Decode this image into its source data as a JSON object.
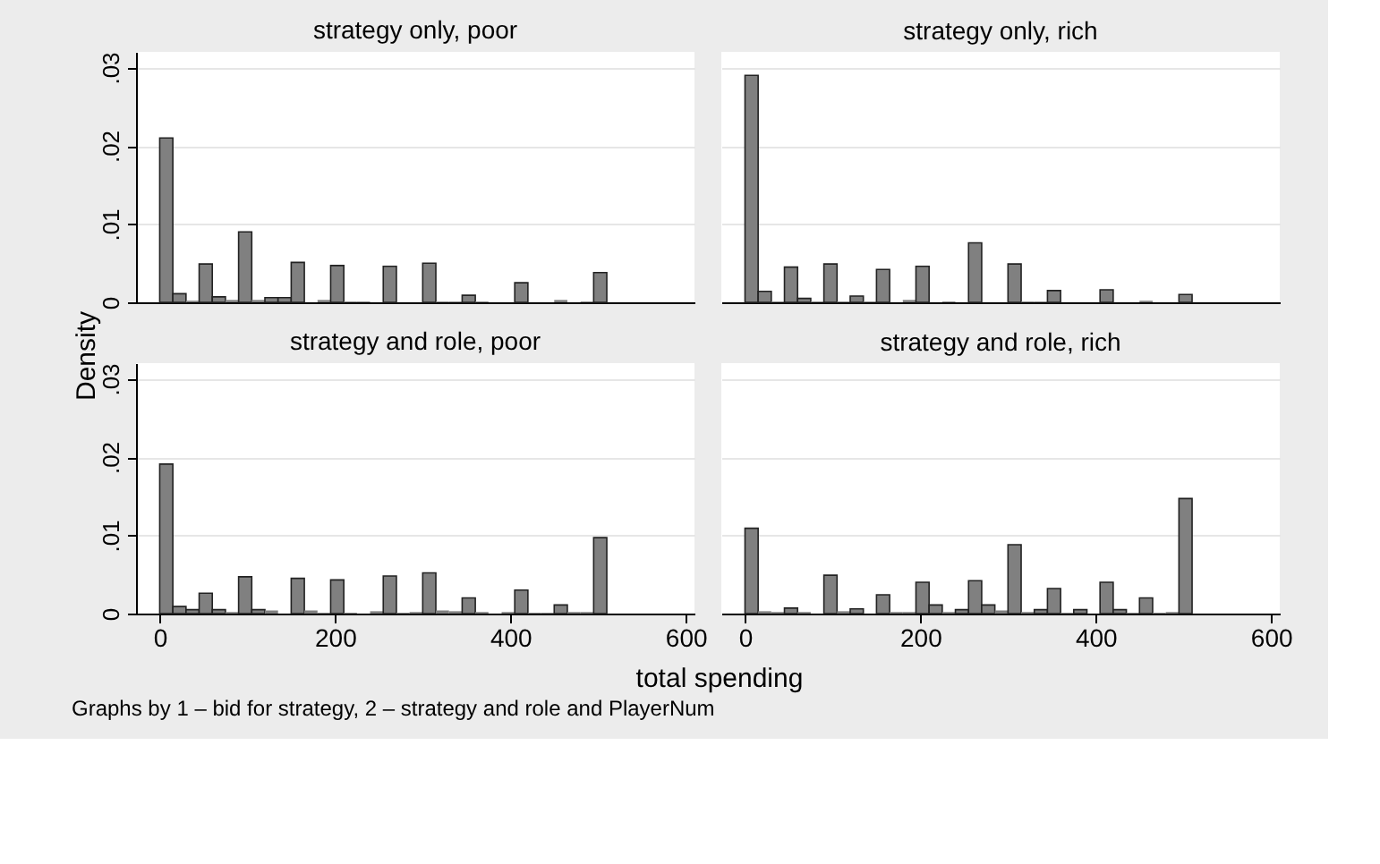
{
  "chart_data": [
    {
      "type": "histogram",
      "title": "strategy only, poor",
      "ylabel": "Density",
      "xlabel": "total spending",
      "annotations": [
        "Graphs by 1 – bid for strategy, 2 – strategy and role and PlayerNum"
      ],
      "color": "#808080",
      "grid": "y",
      "tick_labels": "y",
      "xlim": [
        -27,
        610
      ],
      "ylim": [
        0,
        0.032
      ],
      "xticks": [
        0,
        200,
        400,
        600
      ],
      "yticks": [
        {
          "value": 0,
          "label": "0"
        },
        {
          "value": 0.01,
          "label": ".01"
        },
        {
          "value": 0.02,
          "label": ".02"
        },
        {
          "value": 0.03,
          "label": ".03"
        }
      ],
      "bins": [
        0,
        15,
        30,
        45,
        60,
        75,
        90,
        105,
        120,
        135,
        150,
        165,
        180,
        195,
        210,
        225,
        240,
        255,
        270,
        285,
        300,
        315,
        330,
        345,
        360,
        375,
        390,
        405,
        420,
        435,
        450,
        465,
        480,
        495,
        510
      ],
      "values": [
        0.021,
        0.0011,
        0.0002,
        0.0049,
        0.0007,
        0.0003,
        0.009,
        0.0003,
        0.0006,
        0.0006,
        0.0051,
        0,
        0.0003,
        0.0047,
        0.0001,
        0.0001,
        0,
        0.0046,
        0,
        0,
        0.005,
        0.0001,
        0.0001,
        0.0009,
        0.0001,
        0,
        0,
        0.0025,
        0,
        0,
        0.0003,
        0,
        0.0001,
        0.0038
      ]
    },
    {
      "type": "histogram",
      "title": "strategy only, rich",
      "color": "#808080",
      "grid": "y",
      "tick_labels": false,
      "xlim": [
        -27,
        610
      ],
      "ylim": [
        0,
        0.032
      ],
      "xticks": [
        0,
        200,
        400,
        600
      ],
      "yticks": [
        0,
        0.01,
        0.02,
        0.03
      ],
      "bins": [
        0,
        15,
        30,
        45,
        60,
        75,
        90,
        105,
        120,
        135,
        150,
        165,
        180,
        195,
        210,
        225,
        240,
        255,
        270,
        285,
        300,
        315,
        330,
        345,
        360,
        375,
        390,
        405,
        420,
        435,
        450,
        465,
        480,
        495,
        510
      ],
      "values": [
        0.029,
        0.0014,
        0.0001,
        0.0045,
        0.0005,
        0.0001,
        0.0049,
        0.0001,
        0.0008,
        0.0001,
        0.0042,
        0,
        0.0003,
        0.0046,
        0,
        0.0001,
        0,
        0.0076,
        0,
        0,
        0.0049,
        0.0001,
        0.0001,
        0.0015,
        0,
        0,
        0,
        0.0016,
        0,
        0,
        0.0002,
        0,
        0,
        0.001
      ]
    },
    {
      "type": "histogram",
      "title": "strategy and role, poor",
      "color": "#808080",
      "grid": "y",
      "xlim": [
        -27,
        610
      ],
      "ylim": [
        0,
        0.032
      ],
      "xticks": [
        0,
        200,
        400,
        600
      ],
      "yticks": [
        {
          "value": 0,
          "label": "0"
        },
        {
          "value": 0.01,
          "label": ".01"
        },
        {
          "value": 0.02,
          "label": ".02"
        },
        {
          "value": 0.03,
          "label": ".03"
        }
      ],
      "bins": [
        0,
        15,
        30,
        45,
        60,
        75,
        90,
        105,
        120,
        135,
        150,
        165,
        180,
        195,
        210,
        225,
        240,
        255,
        270,
        285,
        300,
        315,
        330,
        345,
        360,
        375,
        390,
        405,
        420,
        435,
        450,
        465,
        480,
        495,
        510
      ],
      "values": [
        0.0191,
        0.0009,
        0.0005,
        0.0026,
        0.0005,
        0.0002,
        0.0047,
        0.0005,
        0.0004,
        0,
        0.0045,
        0.0004,
        0.0001,
        0.0043,
        0.0001,
        0,
        0.0003,
        0.0048,
        0.0001,
        0.0002,
        0.0052,
        0.0004,
        0.0003,
        0.002,
        0.0002,
        0,
        0.0002,
        0.003,
        0.0001,
        0.0001,
        0.0011,
        0.0002,
        0.0002,
        0.0097
      ]
    },
    {
      "type": "histogram",
      "title": "strategy and role, rich",
      "color": "#808080",
      "grid": "y",
      "tick_labels": "x",
      "xlim": [
        -27,
        610
      ],
      "ylim": [
        0,
        0.032
      ],
      "xticks": [
        0,
        200,
        400,
        600
      ],
      "yticks": [
        0,
        0.01,
        0.02,
        0.03
      ],
      "bins": [
        0,
        15,
        30,
        45,
        60,
        75,
        90,
        105,
        120,
        135,
        150,
        165,
        180,
        195,
        210,
        225,
        240,
        255,
        270,
        285,
        300,
        315,
        330,
        345,
        360,
        375,
        390,
        405,
        420,
        435,
        450,
        465,
        480,
        495,
        510
      ],
      "values": [
        0.0109,
        0.0003,
        0.0002,
        0.0007,
        0.0002,
        0,
        0.0049,
        0.0003,
        0.0006,
        0,
        0.0024,
        0.0002,
        0.0002,
        0.004,
        0.0011,
        0.0002,
        0.0005,
        0.0042,
        0.0011,
        0.0004,
        0.0088,
        0.0002,
        0.0005,
        0.0032,
        0.0001,
        0.0005,
        0,
        0.004,
        0.0005,
        0.0001,
        0.002,
        0.0001,
        0.0002,
        0.0147
      ]
    }
  ]
}
